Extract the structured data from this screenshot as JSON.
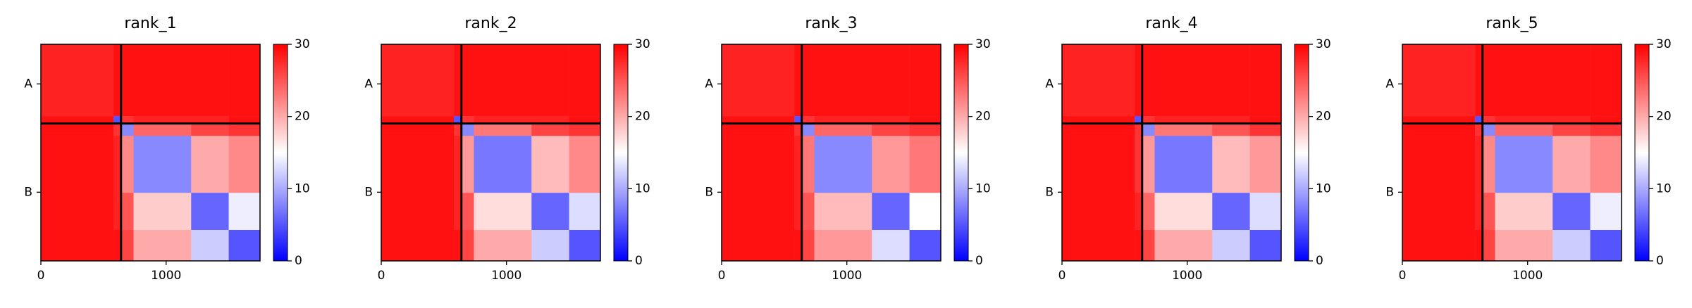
{
  "chart_data": [
    {
      "type": "heatmap",
      "title": "rank_1",
      "colormap": "bwr",
      "x_edges": [
        0,
        580,
        640,
        740,
        1200,
        1500,
        1750
      ],
      "y_edges": [
        0,
        580,
        640,
        740,
        1200,
        1500,
        1750
      ],
      "values": [
        [
          28,
          29,
          29,
          29,
          29,
          29
        ],
        [
          29,
          5,
          27,
          28,
          28,
          29
        ],
        [
          29,
          27,
          8,
          24,
          26,
          27
        ],
        [
          29,
          28,
          22,
          8,
          20,
          22
        ],
        [
          29,
          28,
          25,
          18,
          6,
          14
        ],
        [
          29,
          29,
          26,
          20,
          12,
          5
        ]
      ],
      "xlim": [
        0,
        1750
      ],
      "xticks": [
        0,
        1000
      ],
      "ylim": [
        1750,
        0
      ],
      "yticks": [
        {
          "value": 320,
          "label": "A"
        },
        {
          "value": 1195,
          "label": "B"
        }
      ],
      "chain_boundaries": [
        640
      ],
      "clim": [
        0,
        30
      ],
      "cticks": [
        0,
        10,
        20,
        30
      ]
    },
    {
      "type": "heatmap",
      "title": "rank_2",
      "colormap": "bwr",
      "x_edges": [
        0,
        580,
        640,
        740,
        1200,
        1500,
        1750
      ],
      "y_edges": [
        0,
        580,
        640,
        740,
        1200,
        1500,
        1750
      ],
      "values": [
        [
          28,
          29,
          29,
          29,
          29,
          29
        ],
        [
          29,
          5,
          27,
          28,
          28,
          29
        ],
        [
          29,
          27,
          8,
          23,
          26,
          27
        ],
        [
          29,
          28,
          21,
          7,
          19,
          22
        ],
        [
          29,
          28,
          25,
          17,
          6,
          13
        ],
        [
          29,
          29,
          26,
          20,
          12,
          5
        ]
      ],
      "xlim": [
        0,
        1750
      ],
      "xticks": [
        0,
        1000
      ],
      "ylim": [
        1750,
        0
      ],
      "yticks": [
        {
          "value": 320,
          "label": "A"
        },
        {
          "value": 1195,
          "label": "B"
        }
      ],
      "chain_boundaries": [
        640
      ],
      "clim": [
        0,
        30
      ],
      "cticks": [
        0,
        10,
        20,
        30
      ]
    },
    {
      "type": "heatmap",
      "title": "rank_3",
      "colormap": "bwr",
      "x_edges": [
        0,
        580,
        640,
        740,
        1200,
        1500,
        1750
      ],
      "y_edges": [
        0,
        580,
        640,
        740,
        1200,
        1500,
        1750
      ],
      "values": [
        [
          28,
          29,
          29,
          29,
          29,
          29
        ],
        [
          29,
          5,
          27,
          28,
          28,
          29
        ],
        [
          29,
          27,
          8,
          24,
          26,
          27
        ],
        [
          29,
          28,
          23,
          8,
          21,
          23
        ],
        [
          29,
          28,
          25,
          19,
          6,
          15
        ],
        [
          29,
          29,
          26,
          21,
          13,
          5
        ]
      ],
      "xlim": [
        0,
        1750
      ],
      "xticks": [
        0,
        1000
      ],
      "ylim": [
        1750,
        0
      ],
      "yticks": [
        {
          "value": 320,
          "label": "A"
        },
        {
          "value": 1195,
          "label": "B"
        }
      ],
      "chain_boundaries": [
        640
      ],
      "clim": [
        0,
        30
      ],
      "cticks": [
        0,
        10,
        20,
        30
      ]
    },
    {
      "type": "heatmap",
      "title": "rank_4",
      "colormap": "bwr",
      "x_edges": [
        0,
        580,
        640,
        740,
        1200,
        1500,
        1750
      ],
      "y_edges": [
        0,
        580,
        640,
        740,
        1200,
        1500,
        1750
      ],
      "values": [
        [
          28,
          29,
          29,
          29,
          29,
          29
        ],
        [
          29,
          5,
          27,
          28,
          28,
          29
        ],
        [
          29,
          27,
          8,
          23,
          25,
          27
        ],
        [
          29,
          27,
          21,
          7,
          19,
          21
        ],
        [
          29,
          28,
          24,
          17,
          6,
          13
        ],
        [
          29,
          29,
          26,
          20,
          12,
          5
        ]
      ],
      "xlim": [
        0,
        1750
      ],
      "xticks": [
        0,
        1000
      ],
      "ylim": [
        1750,
        0
      ],
      "yticks": [
        {
          "value": 320,
          "label": "A"
        },
        {
          "value": 1195,
          "label": "B"
        }
      ],
      "chain_boundaries": [
        640
      ],
      "clim": [
        0,
        30
      ],
      "cticks": [
        0,
        10,
        20,
        30
      ]
    },
    {
      "type": "heatmap",
      "title": "rank_5",
      "colormap": "bwr",
      "x_edges": [
        0,
        580,
        640,
        740,
        1200,
        1500,
        1750
      ],
      "y_edges": [
        0,
        580,
        640,
        740,
        1200,
        1500,
        1750
      ],
      "values": [
        [
          28,
          29,
          29,
          29,
          29,
          29
        ],
        [
          29,
          5,
          27,
          28,
          28,
          29
        ],
        [
          29,
          27,
          8,
          24,
          26,
          27
        ],
        [
          29,
          28,
          22,
          8,
          20,
          22
        ],
        [
          29,
          28,
          25,
          18,
          6,
          14
        ],
        [
          29,
          29,
          26,
          20,
          12,
          5
        ]
      ],
      "xlim": [
        0,
        1750
      ],
      "xticks": [
        0,
        1000
      ],
      "ylim": [
        1750,
        0
      ],
      "yticks": [
        {
          "value": 320,
          "label": "A"
        },
        {
          "value": 1195,
          "label": "B"
        }
      ],
      "chain_boundaries": [
        640
      ],
      "clim": [
        0,
        30
      ],
      "cticks": [
        0,
        10,
        20,
        30
      ]
    }
  ]
}
